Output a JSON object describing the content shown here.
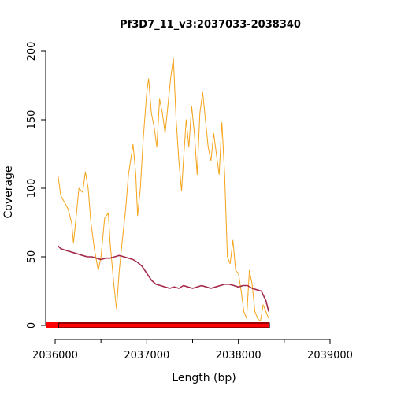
{
  "chart_data": {
    "type": "line",
    "title": "Pf3D7_11_v3:2037033-2038340",
    "xlabel": "Length (bp)",
    "ylabel": "Coverage",
    "xlim": [
      2036000,
      2039000
    ],
    "ylim": [
      0,
      200
    ],
    "x_ticks": [
      2036000,
      2037000,
      2038000,
      2039000
    ],
    "x_tick_labels": [
      "2036000",
      "2037000",
      "2038000",
      "2039000"
    ],
    "y_ticks": [
      0,
      50,
      100,
      150,
      200
    ],
    "y_tick_labels": [
      "0",
      "50",
      "100",
      "150",
      "200"
    ],
    "grid": false,
    "legend": "none",
    "series": [
      {
        "color": "#F5A31A",
        "x": [
          2036030,
          2036060,
          2036100,
          2036140,
          2036180,
          2036200,
          2036230,
          2036260,
          2036300,
          2036330,
          2036360,
          2036390,
          2036430,
          2036470,
          2036500,
          2036540,
          2036580,
          2036600,
          2036640,
          2036670,
          2036700,
          2036730,
          2036770,
          2036800,
          2036850,
          2036880,
          2036900,
          2036930,
          2036960,
          2037000,
          2037020,
          2037050,
          2037080,
          2037110,
          2037140,
          2037170,
          2037200,
          2037230,
          2037260,
          2037290,
          2037320,
          2037350,
          2037380,
          2037400,
          2037430,
          2037460,
          2037490,
          2037520,
          2037550,
          2037580,
          2037610,
          2037640,
          2037670,
          2037700,
          2037730,
          2037760,
          2037790,
          2037820,
          2037850,
          2037880,
          2037910,
          2037940,
          2037970,
          2038000,
          2038030,
          2038060,
          2038090,
          2038120,
          2038150,
          2038180,
          2038210,
          2038240,
          2038270,
          2038300,
          2038330
        ],
        "values": [
          110,
          95,
          90,
          85,
          75,
          60,
          80,
          100,
          97,
          112,
          100,
          75,
          55,
          40,
          50,
          78,
          82,
          60,
          30,
          12,
          40,
          60,
          85,
          110,
          132,
          110,
          80,
          100,
          135,
          170,
          180,
          155,
          145,
          130,
          165,
          155,
          140,
          160,
          180,
          195,
          150,
          120,
          98,
          120,
          150,
          130,
          160,
          140,
          110,
          155,
          170,
          150,
          130,
          120,
          140,
          125,
          110,
          148,
          110,
          50,
          45,
          62,
          40,
          38,
          25,
          10,
          5,
          40,
          30,
          10,
          5,
          3,
          15,
          10,
          5
        ]
      },
      {
        "color": "#A52A4A",
        "x": [
          2036030,
          2036060,
          2036100,
          2036150,
          2036200,
          2036250,
          2036300,
          2036350,
          2036400,
          2036450,
          2036500,
          2036550,
          2036600,
          2036650,
          2036700,
          2036750,
          2036800,
          2036850,
          2036900,
          2036950,
          2037000,
          2037050,
          2037100,
          2037150,
          2037200,
          2037250,
          2037300,
          2037350,
          2037400,
          2037450,
          2037500,
          2037550,
          2037600,
          2037650,
          2037700,
          2037750,
          2037800,
          2037850,
          2037900,
          2037950,
          2038000,
          2038050,
          2038100,
          2038150,
          2038200,
          2038250,
          2038300,
          2038330
        ],
        "values": [
          58,
          56,
          55,
          54,
          53,
          52,
          51,
          50,
          50,
          49,
          48,
          49,
          49,
          50,
          51,
          50,
          49,
          48,
          46,
          43,
          38,
          33,
          30,
          29,
          28,
          27,
          28,
          27,
          29,
          28,
          27,
          28,
          29,
          28,
          27,
          28,
          29,
          30,
          30,
          29,
          28,
          29,
          29,
          27,
          26,
          25,
          18,
          10
        ]
      }
    ],
    "feature_bar": {
      "color": "#FF0000",
      "x_start": 2035900,
      "x_end": 2038340,
      "outlined_start": 2036040,
      "value": 0
    }
  }
}
